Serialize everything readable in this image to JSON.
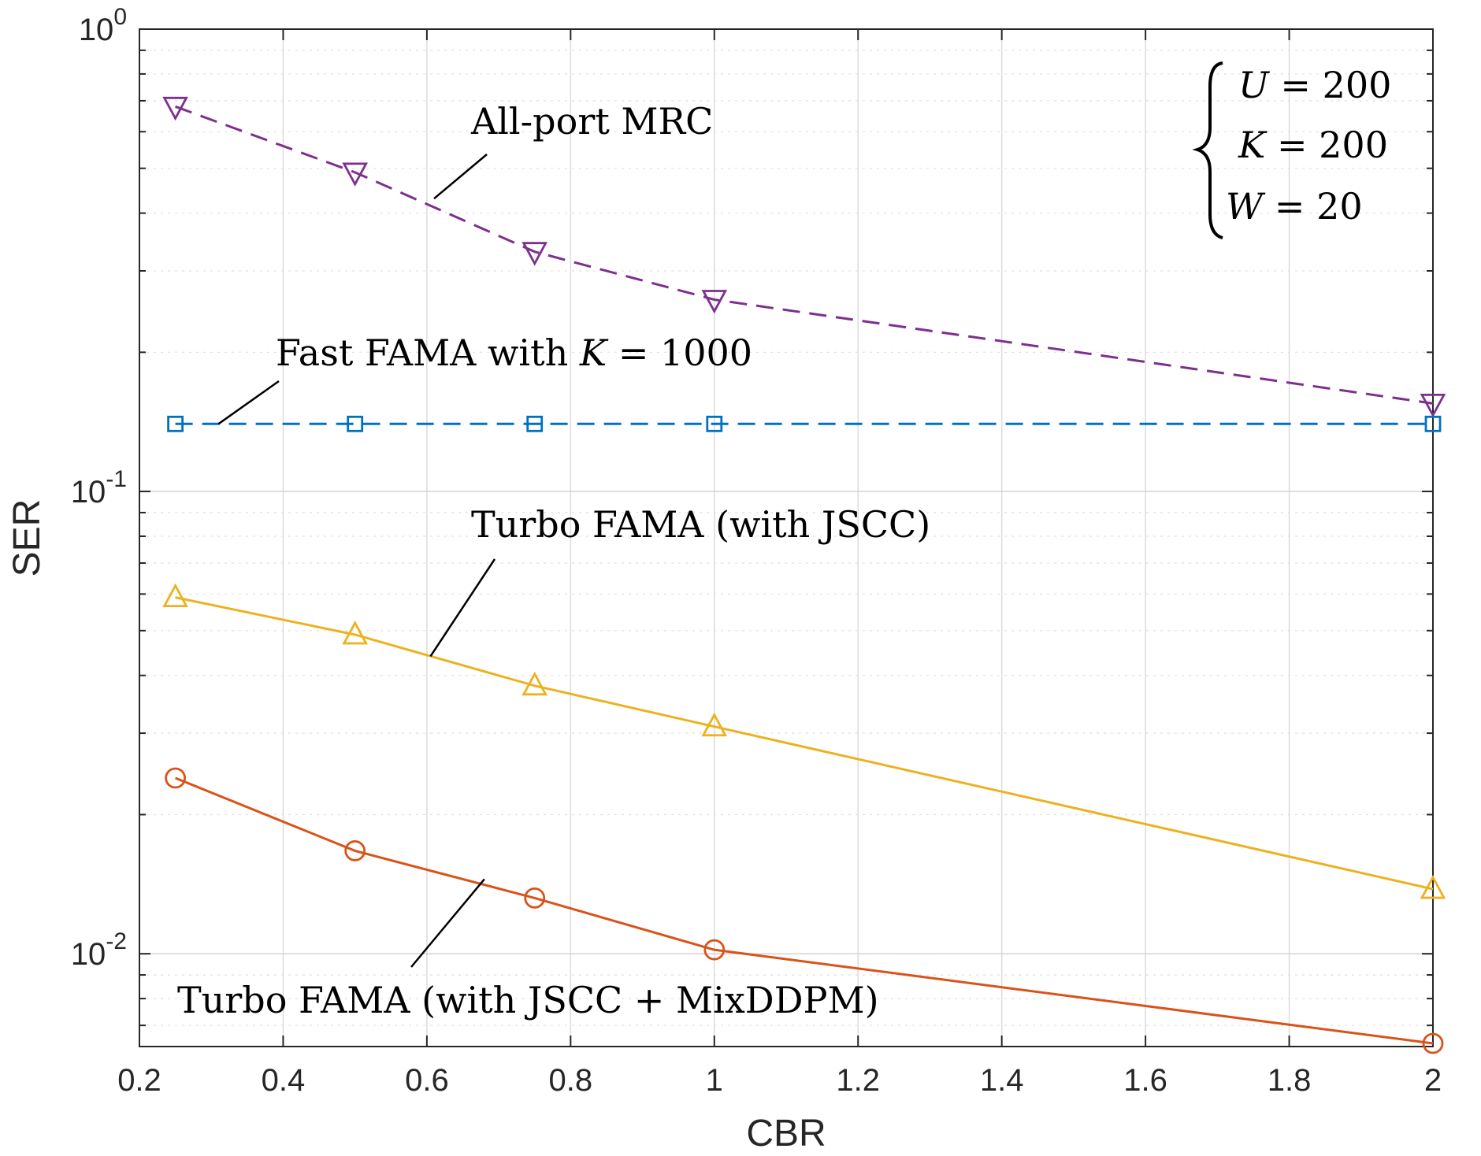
{
  "chart_data": {
    "type": "line",
    "title": "",
    "xlabel": "CBR",
    "ylabel": "SER",
    "xscale": "linear",
    "yscale": "log",
    "xlim": [
      0.2,
      2.0
    ],
    "ylim": [
      0.0063,
      1.0
    ],
    "grid": true,
    "x_ticks": [
      "0.2",
      "0.4",
      "0.6",
      "0.8",
      "1",
      "1.2",
      "1.4",
      "1.6",
      "1.8",
      "2"
    ],
    "y_ticks": [
      {
        "base": "10",
        "exp": "0",
        "value": 1.0
      },
      {
        "base": "10",
        "exp": "-1",
        "value": 0.1
      },
      {
        "base": "10",
        "exp": "-2",
        "value": 0.01
      }
    ],
    "series": [
      {
        "name": "All-port MRC",
        "color": "#7E2F8E",
        "dash": "dashed",
        "marker": "triangle-down",
        "x": [
          0.25,
          0.5,
          0.75,
          1.0,
          2.0
        ],
        "values": [
          0.68,
          0.49,
          0.33,
          0.26,
          0.155
        ]
      },
      {
        "name": "Fast FAMA with K = 1000",
        "color": "#0072BD",
        "dash": "dashed",
        "marker": "square",
        "x": [
          0.25,
          0.5,
          0.75,
          1.0,
          2.0
        ],
        "values": [
          0.14,
          0.14,
          0.14,
          0.14,
          0.14
        ]
      },
      {
        "name": "Turbo FAMA (with JSCC)",
        "color": "#EDB120",
        "dash": "solid",
        "marker": "triangle-up",
        "x": [
          0.25,
          0.5,
          0.75,
          1.0,
          2.0
        ],
        "values": [
          0.059,
          0.049,
          0.038,
          0.031,
          0.0138
        ]
      },
      {
        "name": "Turbo FAMA (with JSCC + MixDDPM)",
        "color": "#D95319",
        "dash": "solid",
        "marker": "circle",
        "x": [
          0.25,
          0.5,
          0.75,
          1.0,
          2.0
        ],
        "values": [
          0.024,
          0.0167,
          0.0132,
          0.0102,
          0.0064
        ]
      }
    ],
    "annotations": [
      {
        "id": "mrc",
        "parts": [
          {
            "t": "All-port MRC"
          }
        ],
        "pointer_to": {
          "x": 0.61,
          "y": 0.43
        }
      },
      {
        "id": "fast",
        "parts": [
          {
            "t": "Fast FAMA with "
          },
          {
            "t": "K",
            "math": true
          },
          {
            "t": " = 1000"
          }
        ],
        "pointer_to": {
          "x": 0.31,
          "y": 0.14
        }
      },
      {
        "id": "turbo_jscc",
        "parts": [
          {
            "t": "Turbo FAMA (with JSCC)"
          }
        ],
        "pointer_to": {
          "x": 0.605,
          "y": 0.044
        }
      },
      {
        "id": "turbo_mix",
        "parts": [
          {
            "t": "Turbo FAMA (with JSCC + MixDDPM)"
          }
        ],
        "pointer_to": {
          "x": 0.68,
          "y": 0.0145
        }
      }
    ],
    "parameters": [
      {
        "sym": "U",
        "rest": " = 200"
      },
      {
        "sym": "K",
        "rest": " = 200"
      },
      {
        "sym": "W",
        "rest": " = 20"
      }
    ]
  }
}
